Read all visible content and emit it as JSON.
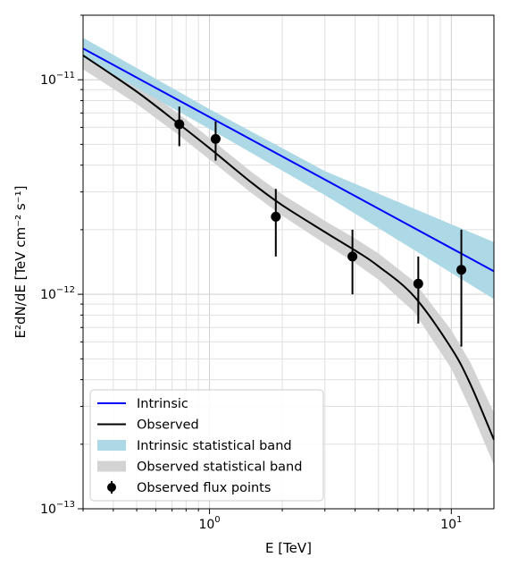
{
  "chart_data": {
    "type": "line",
    "xlabel": "E [TeV]",
    "ylabel": "E²dN/dE [TeV cm⁻² s⁻¹]",
    "xscale": "log",
    "yscale": "log",
    "xlim": [
      0.3,
      15
    ],
    "ylim": [
      1e-13,
      2e-11
    ],
    "grid": "both major and minor",
    "legend_position": "lower-left",
    "x_ticks": [
      {
        "value": 1,
        "base": "10",
        "exp": "0"
      },
      {
        "value": 10,
        "base": "10",
        "exp": "1"
      }
    ],
    "y_ticks": [
      {
        "value": 1e-13,
        "base": "10",
        "exp": "−13"
      },
      {
        "value": 1e-12,
        "base": "10",
        "exp": "−12"
      },
      {
        "value": 1e-11,
        "base": "10",
        "exp": "−11"
      }
    ],
    "series": [
      {
        "name": "Intrinsic",
        "kind": "line",
        "color": "#0000ff",
        "x": [
          0.3,
          15
        ],
        "y": [
          1.4e-11,
          1.28e-12
        ]
      },
      {
        "name": "Observed",
        "kind": "line",
        "color": "#000000",
        "x": [
          0.3,
          0.5,
          0.75,
          1.0,
          1.5,
          2.0,
          3.0,
          4.0,
          5.0,
          7.0,
          10.0,
          12.0,
          15.0
        ],
        "y": [
          1.3e-11,
          8.8e-12,
          6.2e-12,
          4.8e-12,
          3.3e-12,
          2.6e-12,
          1.95e-12,
          1.6e-12,
          1.35e-12,
          9.8e-13,
          5.6e-13,
          3.8e-13,
          2.1e-13
        ]
      },
      {
        "name": "Intrinsic statistical band",
        "kind": "band",
        "color": "#add8e6",
        "x": [
          0.3,
          1.0,
          3.0,
          15.0
        ],
        "y_low": [
          1.27e-11,
          5.9e-12,
          2.9e-12,
          9.5e-13
        ],
        "y_high": [
          1.57e-11,
          7.3e-12,
          3.75e-12,
          1.75e-12
        ]
      },
      {
        "name": "Observed statistical band",
        "kind": "band",
        "color": "#d3d3d3",
        "x": [
          0.3,
          0.5,
          0.75,
          1.0,
          1.5,
          2.0,
          3.0,
          4.0,
          5.0,
          7.0,
          10.0,
          12.0,
          15.0
        ],
        "y_low": [
          1.12e-11,
          7.7e-12,
          5.5e-12,
          4.25e-12,
          2.95e-12,
          2.32e-12,
          1.72e-12,
          1.4e-12,
          1.17e-12,
          8.3e-13,
          4.5e-13,
          2.9e-13,
          1.6e-13
        ],
        "y_high": [
          1.42e-11,
          9.7e-12,
          6.9e-12,
          5.35e-12,
          3.7e-12,
          2.92e-12,
          2.2e-12,
          1.82e-12,
          1.55e-12,
          1.15e-12,
          6.8e-13,
          4.8e-13,
          2.8e-13
        ]
      },
      {
        "name": "Observed flux points",
        "kind": "errorbar",
        "color": "#000000",
        "points": [
          {
            "x": 0.75,
            "y": 6.2e-12,
            "y_low": 4.9e-12,
            "y_high": 7.5e-12
          },
          {
            "x": 1.06,
            "y": 5.3e-12,
            "y_low": 4.2e-12,
            "y_high": 6.4e-12
          },
          {
            "x": 1.88,
            "y": 2.3e-12,
            "y_low": 1.5e-12,
            "y_high": 3.1e-12
          },
          {
            "x": 3.9,
            "y": 1.5e-12,
            "y_low": 1e-12,
            "y_high": 2e-12
          },
          {
            "x": 7.3,
            "y": 1.12e-12,
            "y_low": 7.3e-13,
            "y_high": 1.5e-12
          },
          {
            "x": 11.0,
            "y": 1.3e-12,
            "y_low": 5.7e-13,
            "y_high": 2e-12
          }
        ]
      }
    ]
  }
}
